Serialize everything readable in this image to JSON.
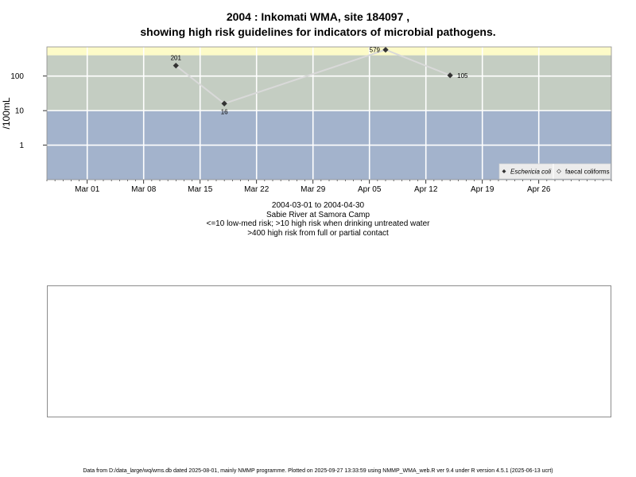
{
  "title_line1": "2004 : Inkomati WMA, site 184097 ,",
  "title_line2": "showing high risk guidelines for indicators of microbial pathogens.",
  "captions": [
    "2004-03-01 to 2004-04-30",
    "Sabie River at Samora Camp",
    "<=10 low-med risk; >10 high risk when drinking untreated water",
    ">400 high risk from full or partial contact"
  ],
  "footer": "Data from D:/data_large/wq/wms.db dated 2025-08-01, mainly NMMP programme. Plotted on 2025-09-27 13:33:59 using NMMP_WMA_web.R ver 9.4 under R version 4.5.1 (2025-06-13 ucrt)",
  "colors": {
    "band_low": "#a3b3cc",
    "band_high": "#c4cdc2",
    "band_contact": "#fdfbc8",
    "grid": "#ffffff",
    "line": "#d9d9d9",
    "point": "#333333"
  },
  "chart_data": {
    "type": "line",
    "ylabel": "/100mL",
    "yscale": "log10",
    "xlim": [
      "2004-02-25",
      "2004-05-05"
    ],
    "ylim": [
      0.1,
      700
    ],
    "yticks": [
      1,
      10,
      100
    ],
    "ytick_labels": [
      "1",
      "10",
      "100"
    ],
    "xticks": [
      "2004-03-01",
      "2004-03-08",
      "2004-03-15",
      "2004-03-22",
      "2004-03-29",
      "2004-04-05",
      "2004-04-12",
      "2004-04-19",
      "2004-04-26"
    ],
    "xtick_labels": [
      "Mar 01",
      "Mar 08",
      "Mar 15",
      "Mar 22",
      "Mar 29",
      "Apr 05",
      "Apr 12",
      "Apr 19",
      "Apr 26"
    ],
    "risk_bands": [
      {
        "from": 0.1,
        "to": 10,
        "color": "#a3b3cc"
      },
      {
        "from": 10,
        "to": 400,
        "color": "#c4cdc2"
      },
      {
        "from": 400,
        "to": 700,
        "color": "#fdfbc8"
      }
    ],
    "grid": true,
    "legend_position": "bottom-right",
    "series": [
      {
        "name": "Eschericia coli",
        "marker": "diamond-filled",
        "points": [
          {
            "x": "2004-03-12",
            "y": 201,
            "label": "201"
          },
          {
            "x": "2004-03-18",
            "y": 16,
            "label": "16"
          },
          {
            "x": "2004-04-07",
            "y": 579,
            "label": "579"
          },
          {
            "x": "2004-04-15",
            "y": 105,
            "label": "105"
          }
        ]
      },
      {
        "name": "faecal coliforms",
        "marker": "diamond-open",
        "points": []
      }
    ]
  }
}
